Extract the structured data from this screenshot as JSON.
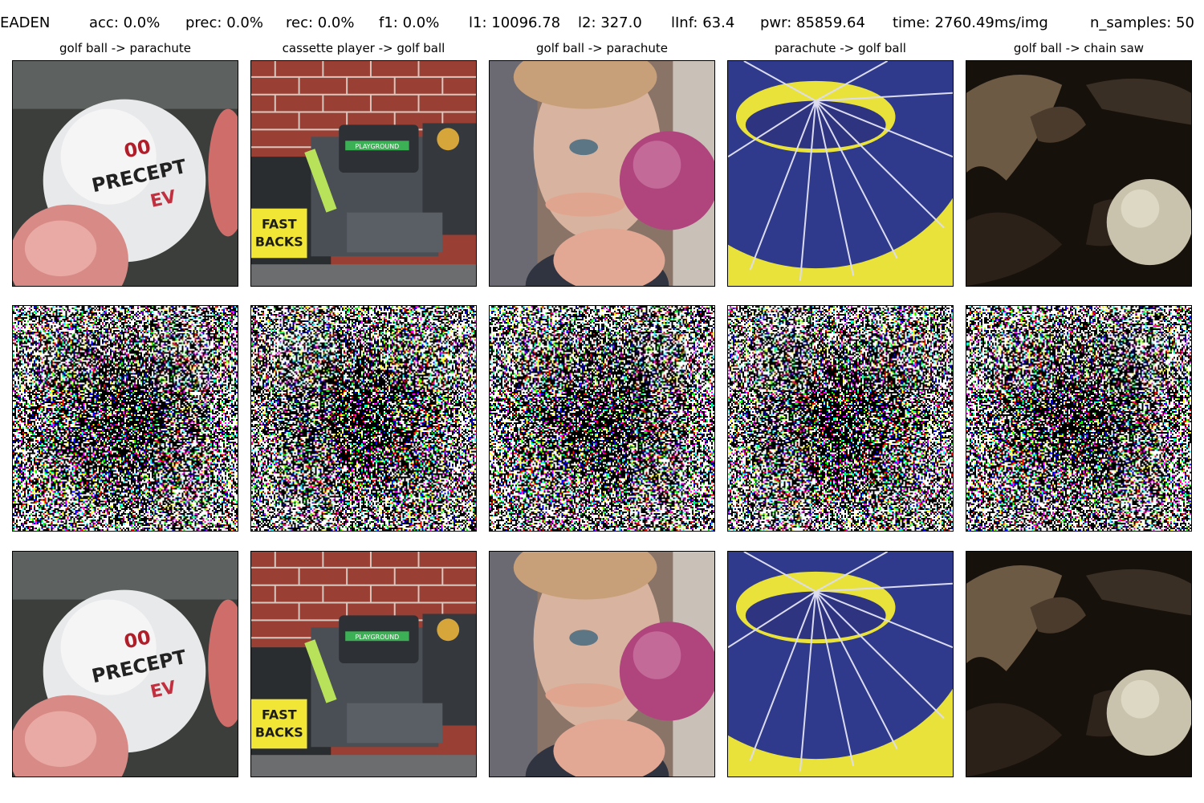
{
  "header": {
    "method": "EADEN",
    "acc": "acc: 0.0%",
    "prec": "prec: 0.0%",
    "rec": "rec: 0.0%",
    "f1": "f1: 0.0%",
    "l1": "l1: 10096.78",
    "l2": "l2: 327.0",
    "linf": "lInf: 63.4",
    "pwr": "pwr: 85859.64",
    "time": "time: 2760.49ms/img",
    "n_samples": "n_samples: 50"
  },
  "columns": [
    {
      "title": "golf ball -> parachute",
      "scene": "golf-ball-precept"
    },
    {
      "title": "cassette player -> golf ball",
      "scene": "boombox-brick-wall"
    },
    {
      "title": "golf ball -> parachute",
      "scene": "child-holding-pink-ball"
    },
    {
      "title": "parachute -> golf ball",
      "scene": "blue-yellow-parachute"
    },
    {
      "title": "golf ball -> chain saw",
      "scene": "golf-ball-in-leaves"
    }
  ],
  "labels": {
    "precept_top": "00",
    "precept_mid": "PRECEPT",
    "precept_bot": "EV",
    "fast": "FAST",
    "backs": "BACKS",
    "playground": "PLAYGROUND"
  },
  "colors": {
    "parachute_blue": "#2f3a8c",
    "parachute_yellow": "#e9e23a",
    "ball_pink": "#b0457e",
    "brick": "#9a3f33"
  }
}
